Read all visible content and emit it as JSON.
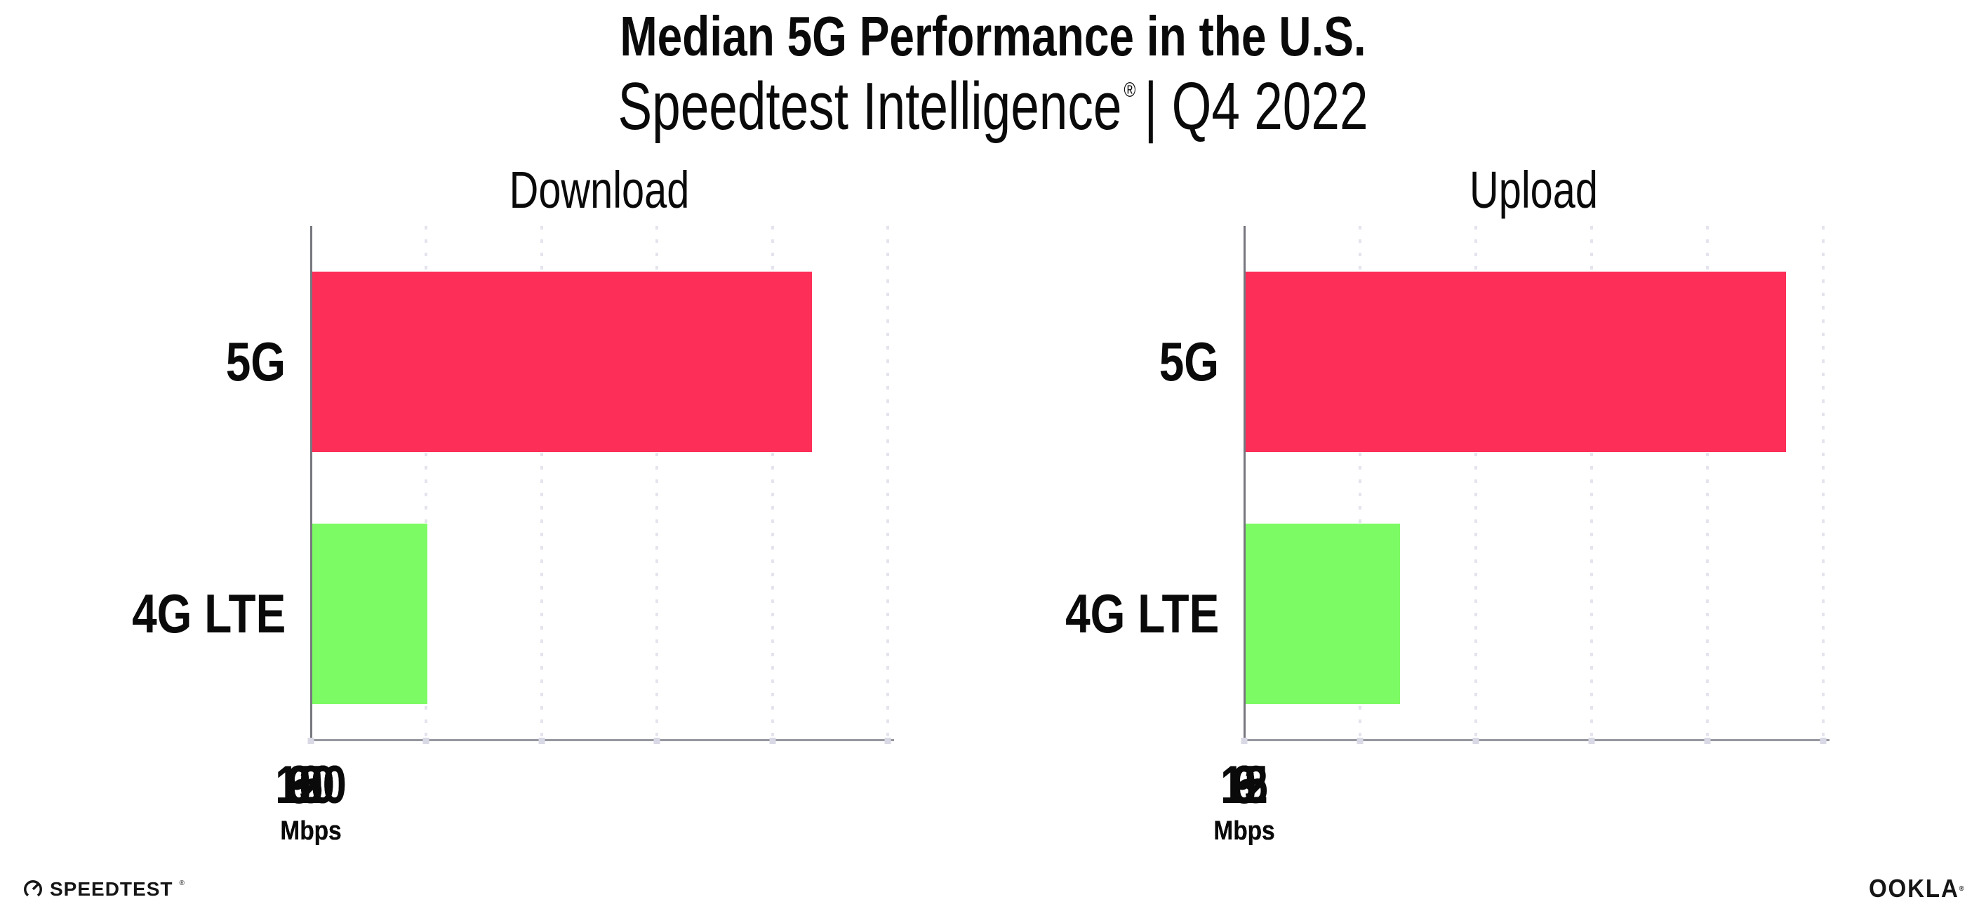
{
  "header": {
    "title": "Median 5G Performance in the U.S.",
    "subtitle": {
      "brand": "Speedtest Intelligence",
      "registered": "®",
      "rest": "| Q4 2022"
    }
  },
  "chart_data": [
    {
      "type": "bar",
      "orientation": "horizontal",
      "title": "Download",
      "unit": "Mbps",
      "xlim": [
        0,
        150
      ],
      "ticks": [
        0,
        30,
        60,
        90,
        120,
        150
      ],
      "grid": "dotted-vertical",
      "legend": "none",
      "categories": [
        "5G",
        "4G LTE"
      ],
      "values": [
        130,
        30
      ],
      "series": [
        {
          "name": "5G",
          "value": 130,
          "color": "#fd2e58"
        },
        {
          "name": "4G LTE",
          "value": 30,
          "color": "#7dfb64"
        }
      ]
    },
    {
      "type": "bar",
      "orientation": "horizontal",
      "title": "Upload",
      "unit": "Mbps",
      "xlim": [
        0,
        15
      ],
      "ticks": [
        0,
        3,
        6,
        9,
        12,
        15
      ],
      "grid": "dotted-vertical",
      "legend": "none",
      "categories": [
        "5G",
        "4G LTE"
      ],
      "values": [
        14,
        4
      ],
      "series": [
        {
          "name": "5G",
          "value": 14,
          "color": "#fd2e58"
        },
        {
          "name": "4G LTE",
          "value": 4,
          "color": "#7dfb64"
        }
      ]
    }
  ],
  "footer": {
    "speedtest_label": "SPEEDTEST",
    "speedtest_mark": "®",
    "ookla_label": "OOKLA",
    "ookla_mark": "®"
  },
  "colors": {
    "bar_5g": "#fd2e58",
    "bar_4g_lte": "#7dfb64",
    "gridline": "#e4e4ee",
    "axis": "#96969e",
    "tick_dot": "#d9d9e6",
    "text": "#0a0a0a"
  }
}
